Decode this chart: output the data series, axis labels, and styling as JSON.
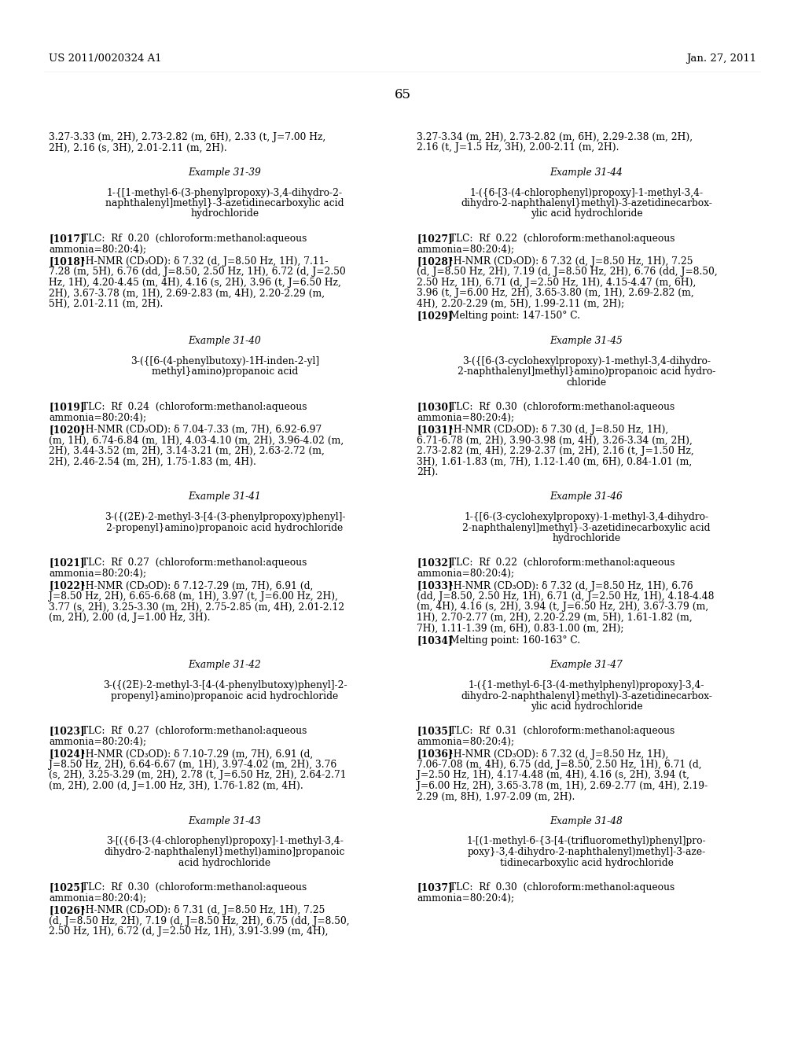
{
  "background_color": "#ffffff",
  "header_left": "US 2011/0020324 A1",
  "header_right": "Jan. 27, 2011",
  "page_number": "65"
}
